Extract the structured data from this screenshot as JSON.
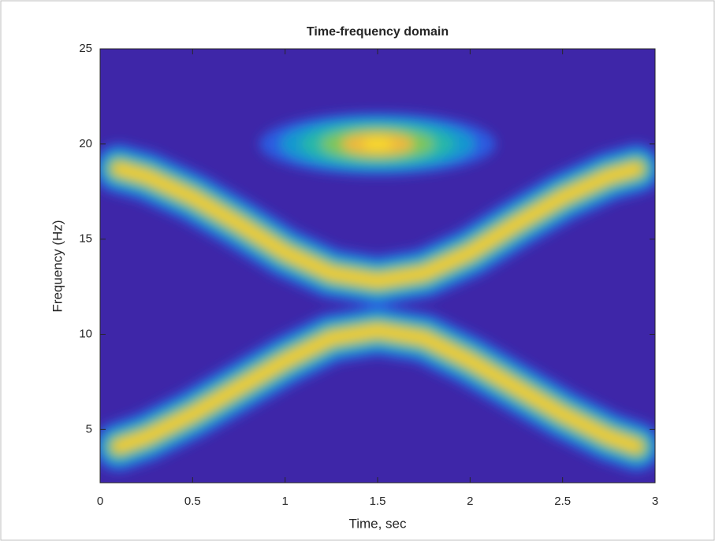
{
  "chart_data": {
    "type": "spectrogram",
    "title": "Time-frequency domain",
    "xlabel": "Time, sec",
    "ylabel": "Frequency (Hz)",
    "xlim": [
      0,
      3
    ],
    "ylim": [
      2.2,
      25
    ],
    "xticks": [
      0,
      0.5,
      1,
      1.5,
      2,
      2.5,
      3
    ],
    "yticks": [
      5,
      10,
      15,
      20,
      25
    ],
    "background": "#3e26a8",
    "colormap": [
      "#2a5be0",
      "#1598cf",
      "#25b7a8",
      "#7cc65c",
      "#f0b83e",
      "#f9dc26"
    ],
    "series": [
      {
        "x": [
          0.1,
          0.25,
          0.5,
          0.75,
          1.0,
          1.25,
          1.5,
          1.75,
          2.0,
          2.25,
          2.5,
          2.75,
          2.9
        ],
        "values": [
          18.7,
          18.3,
          17.2,
          15.8,
          14.3,
          13.2,
          12.8,
          13.2,
          14.3,
          15.8,
          17.2,
          18.3,
          18.7
        ]
      },
      {
        "x": [
          0.1,
          0.25,
          0.5,
          0.75,
          1.0,
          1.25,
          1.5,
          1.75,
          2.0,
          2.25,
          2.5,
          2.75,
          2.9
        ],
        "values": [
          4.1,
          4.6,
          5.8,
          7.2,
          8.6,
          9.8,
          10.2,
          9.8,
          8.6,
          7.2,
          5.8,
          4.6,
          4.1
        ]
      },
      {
        "x": [
          1.5
        ],
        "values": [
          20
        ]
      }
    ]
  }
}
